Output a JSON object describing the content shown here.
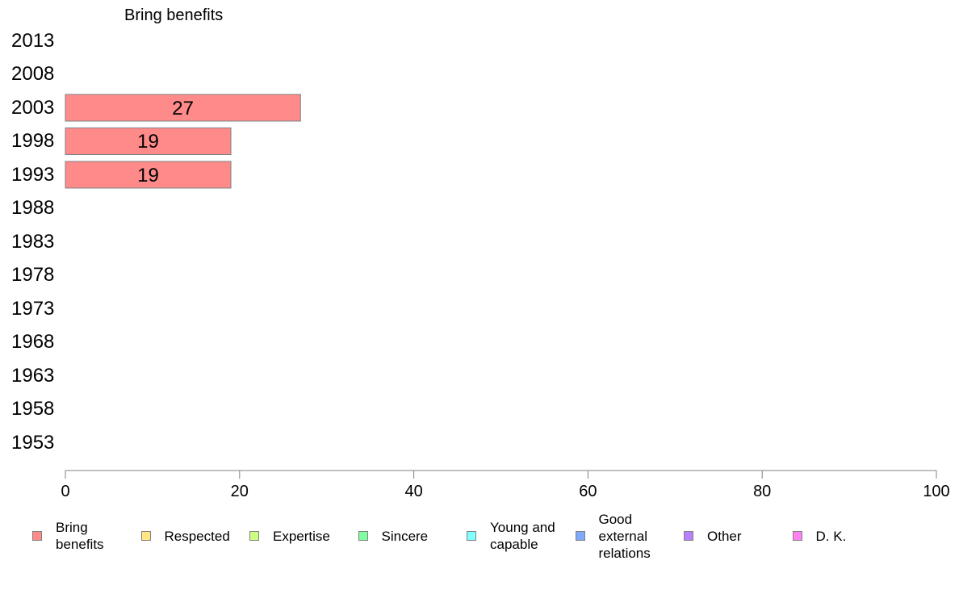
{
  "chart_data": {
    "type": "bar",
    "orientation": "horizontal",
    "title": "Bring benefits",
    "categories": [
      "2013",
      "2008",
      "2003",
      "1998",
      "1993",
      "1988",
      "1983",
      "1978",
      "1973",
      "1968",
      "1963",
      "1958",
      "1953"
    ],
    "series": [
      {
        "name": "Bring benefits",
        "color": "#ff8a8a",
        "values": [
          null,
          null,
          27,
          19,
          19,
          null,
          null,
          null,
          null,
          null,
          null,
          null,
          null
        ],
        "data_labels": [
          "",
          "",
          "27",
          "19",
          "19",
          "",
          "",
          "",
          "",
          "",
          "",
          "",
          ""
        ]
      }
    ],
    "xlim": [
      0,
      100
    ],
    "xticks": [
      "0",
      "20",
      "40",
      "60",
      "80",
      "100"
    ],
    "grid": false,
    "legend_position": "bottom",
    "legend": [
      {
        "label": "Bring\nbenefits",
        "color": "#ff8a8a"
      },
      {
        "label": "Respected",
        "color": "#ffe680"
      },
      {
        "label": "Expertise",
        "color": "#ccff80"
      },
      {
        "label": "Sincere",
        "color": "#80ffa0"
      },
      {
        "label": "Young and\ncapable",
        "color": "#80ffff"
      },
      {
        "label": "Good\nexternal\nrelations",
        "color": "#80a8ff"
      },
      {
        "label": "Other",
        "color": "#b880ff"
      },
      {
        "label": "D. K.",
        "color": "#ff80f0"
      }
    ]
  }
}
